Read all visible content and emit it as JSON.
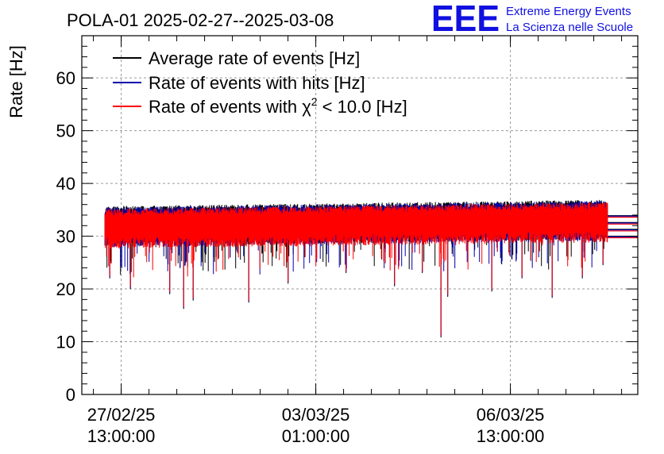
{
  "chart_data": {
    "type": "line",
    "title": "POLA-01 2025-02-27--2025-03-08",
    "ylabel": "Rate [Hz]",
    "xlabel": "",
    "ylim": [
      0,
      68
    ],
    "yticks": [
      0,
      10,
      20,
      30,
      40,
      50,
      60
    ],
    "xlim": [
      "2025-02-26 20:00:00",
      "2025-03-08 20:00:00"
    ],
    "xticks": [
      {
        "date": "2025-02-27 13:00:00",
        "line1": "27/02/25",
        "line2": "13:00:00"
      },
      {
        "date": "2025-03-03 01:00:00",
        "line1": "03/03/25",
        "line2": "01:00:00"
      },
      {
        "date": "2025-03-06 13:00:00",
        "line1": "06/03/25",
        "line2": "13:00:00"
      }
    ],
    "grid": true,
    "legend_position": "top-left",
    "series": [
      {
        "name": "Average rate of events [Hz]",
        "color": "#000000",
        "base": 32.5
      },
      {
        "name": "Rate of events with hits [Hz]",
        "color": "#0000aa",
        "base": 32.3
      },
      {
        "name": "Rate of events with χ² < 10.0 [Hz]",
        "legend_main": "Rate of events with χ",
        "legend_sup": "2",
        "legend_tail": " < 10.0 [Hz]",
        "color": "#ff0000",
        "base": 32.0
      }
    ],
    "data_span": [
      "2025-02-27 06:00:00",
      "2025-03-08 07:00:00"
    ],
    "dips": [
      {
        "date": "2025-02-27 08:00:00",
        "value": 22
      },
      {
        "date": "2025-02-27 17:00:00",
        "value": 20
      },
      {
        "date": "2025-02-28 10:00:00",
        "value": 19
      },
      {
        "date": "2025-02-28 16:00:00",
        "value": 16.2
      },
      {
        "date": "2025-02-28 20:00:00",
        "value": 17.8
      },
      {
        "date": "2025-03-01 06:00:00",
        "value": 26
      },
      {
        "date": "2025-03-01 20:00:00",
        "value": 17.4
      },
      {
        "date": "2025-03-02 13:00:00",
        "value": 21
      },
      {
        "date": "2025-03-03 14:00:00",
        "value": 23
      },
      {
        "date": "2025-03-04 11:00:00",
        "value": 20.5
      },
      {
        "date": "2025-03-04 23:00:00",
        "value": 23
      },
      {
        "date": "2025-03-05 07:00:00",
        "value": 10.8
      },
      {
        "date": "2025-03-05 10:00:00",
        "value": 18.5
      },
      {
        "date": "2025-03-06 05:00:00",
        "value": 19.5
      },
      {
        "date": "2025-03-06 18:00:00",
        "value": 22
      },
      {
        "date": "2025-03-07 07:00:00",
        "value": 18.3
      },
      {
        "date": "2025-03-07 20:00:00",
        "value": 22
      },
      {
        "date": "2025-03-08 05:00:00",
        "value": 24.5
      }
    ]
  },
  "logo": {
    "letters": "EEE",
    "line1": "Extreme Energy Events",
    "line2": "La Scienza nelle Scuole",
    "color": "#1010e0"
  }
}
